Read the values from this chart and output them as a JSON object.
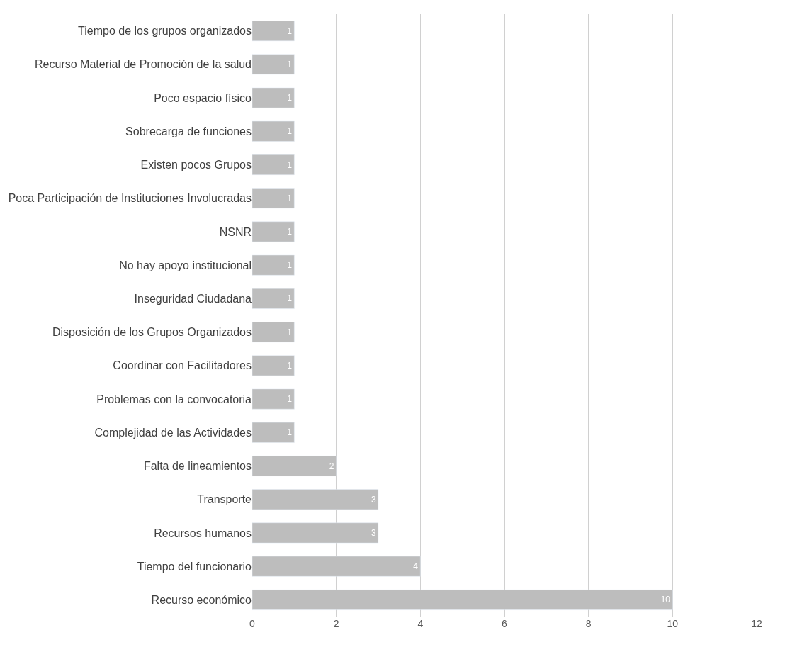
{
  "chart_data": {
    "type": "bar",
    "orientation": "horizontal",
    "categories": [
      "Tiempo de los grupos organizados",
      "Recurso Material de Promoción de la salud",
      "Poco espacio físico",
      "Sobrecarga de funciones",
      "Existen pocos Grupos",
      "Poca Participación de Instituciones Involucradas",
      "NSNR",
      "No hay apoyo institucional",
      "Inseguridad Ciudadana",
      "Disposición de los Grupos Organizados",
      "Coordinar con Facilitadores",
      "Problemas con la convocatoria",
      "Complejidad de las Actividades",
      "Falta de lineamientos",
      "Transporte",
      "Recursos humanos",
      "Tiempo del funcionario",
      "Recurso económico"
    ],
    "values": [
      1,
      1,
      1,
      1,
      1,
      1,
      1,
      1,
      1,
      1,
      1,
      1,
      1,
      2,
      3,
      3,
      4,
      10
    ],
    "color": "#bdbdbd",
    "xlim": [
      0,
      12
    ],
    "xticks": [
      0,
      2,
      4,
      6,
      8,
      10,
      12
    ],
    "grid": "x",
    "data_labels": true
  }
}
